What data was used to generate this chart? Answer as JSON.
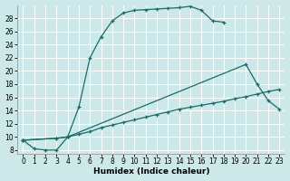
{
  "bg_color": "#cce8e8",
  "line_color": "#1a6b6b",
  "grid_color": "#ffffff",
  "xlabel": "Humidex (Indice chaleur)",
  "xlim": [
    -0.5,
    23.5
  ],
  "ylim": [
    7.5,
    30.0
  ],
  "xticks": [
    0,
    1,
    2,
    3,
    4,
    5,
    6,
    7,
    8,
    9,
    10,
    11,
    12,
    13,
    14,
    15,
    16,
    17,
    18,
    19,
    20,
    21,
    22,
    23
  ],
  "yticks": [
    8,
    10,
    12,
    14,
    16,
    18,
    20,
    22,
    24,
    26,
    28
  ],
  "s1_x": [
    0,
    1,
    2,
    3,
    4,
    5,
    6,
    7,
    8,
    9,
    10,
    11,
    12,
    13,
    14,
    15,
    16,
    17,
    18
  ],
  "s1_y": [
    9.5,
    8.2,
    8.0,
    8.0,
    10.0,
    14.5,
    22.0,
    25.2,
    27.6,
    28.8,
    29.2,
    29.3,
    29.4,
    29.5,
    29.6,
    29.8,
    29.2,
    27.6,
    27.4
  ],
  "s2_x": [
    0,
    3,
    4,
    5,
    6,
    7,
    8,
    9,
    10,
    11,
    12,
    13,
    14,
    15,
    16,
    17,
    18,
    19,
    20,
    21,
    22,
    23
  ],
  "s2_y": [
    9.5,
    9.8,
    10.0,
    10.4,
    10.8,
    11.4,
    11.8,
    12.2,
    12.6,
    13.0,
    13.4,
    13.8,
    14.2,
    14.5,
    14.8,
    15.1,
    15.4,
    15.8,
    16.1,
    16.5,
    16.9,
    17.2
  ],
  "s3_x": [
    0,
    3,
    4,
    20,
    21,
    22,
    23
  ],
  "s3_y": [
    9.5,
    9.8,
    10.0,
    21.0,
    18.0,
    15.5,
    14.2
  ],
  "tick_fontsize": 5.5,
  "xlabel_fontsize": 6.5
}
